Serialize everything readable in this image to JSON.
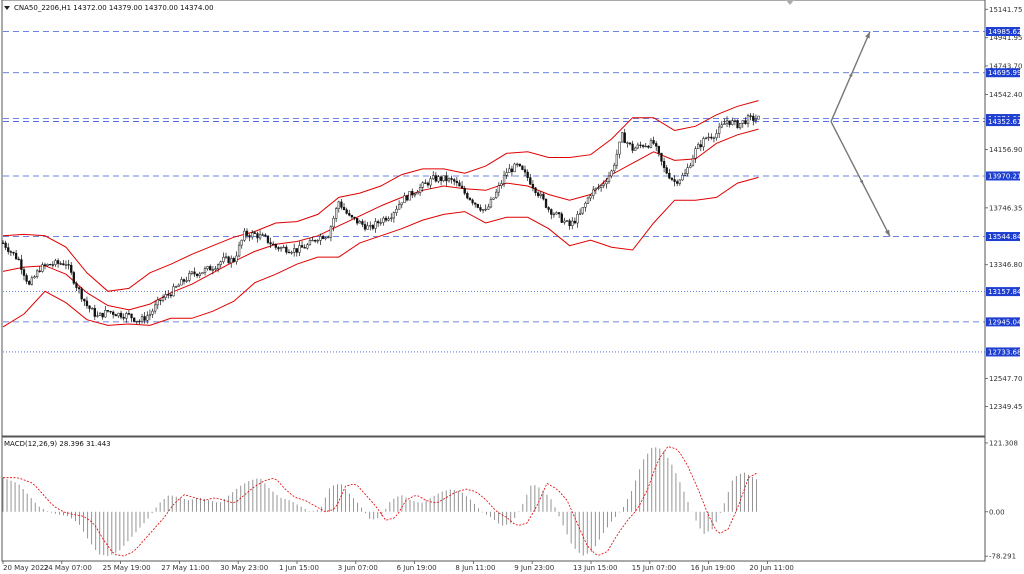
{
  "header": {
    "symbol_line": "CNA50_2206,H1  14372.00  14379.00  14370.00  14374.00",
    "macd_label": "MACD(12,26,9) 28.396 31.443"
  },
  "colors": {
    "candle": "#111111",
    "bollinger": "#e00000",
    "level_line": "#3b5bdb",
    "level_tag_bg": "#1f3fd1",
    "projection": "#777777",
    "macd_hist": "#888888",
    "macd_signal": "#e00000",
    "grid_border": "#555555"
  },
  "chart_data": [
    {
      "type": "candlestick",
      "title": "CNA50_2206,H1",
      "ylim": [
        12150,
        15200
      ],
      "y_ticks": [
        15141.75,
        14941.95,
        14743.7,
        14542.4,
        14156.9,
        13746.35,
        13346.8,
        12547.7,
        12349.45
      ],
      "x_ticks": [
        "20 May 2022",
        "24 May 07:00",
        "25 May 19:00",
        "27 May 11:00",
        "30 May 23:00",
        "1 Jun 15:00",
        "3 Jun 07:00",
        "6 Jun 19:00",
        "8 Jun 11:00",
        "9 Jun 23:00",
        "13 Jun 15:00",
        "15 Jun 07:00",
        "16 Jun 19:00",
        "20 Jun 11:00"
      ],
      "levels": [
        {
          "value": 14985.62,
          "label": "14985.62",
          "style": "dashed"
        },
        {
          "value": 14695.99,
          "label": "14695.99",
          "style": "dashed"
        },
        {
          "value": 14374.0,
          "label": "14374.00",
          "style": "dashed"
        },
        {
          "value": 14352.61,
          "label": "14352.61",
          "style": "dashed"
        },
        {
          "value": 13970.21,
          "label": "13970.21",
          "style": "dashed"
        },
        {
          "value": 13544.84,
          "label": "13544.84",
          "style": "dashed"
        },
        {
          "value": 13157.84,
          "label": "13157.84",
          "style": "dotted"
        },
        {
          "value": 12945.04,
          "label": "12945.04",
          "style": "dashed"
        },
        {
          "value": 12733.68,
          "label": "12733.68",
          "style": "dotted"
        }
      ],
      "close_path": [
        [
          0,
          13500
        ],
        [
          6,
          13380
        ],
        [
          10,
          13200
        ],
        [
          14,
          13320
        ],
        [
          18,
          13350
        ],
        [
          24,
          13360
        ],
        [
          28,
          13200
        ],
        [
          32,
          13060
        ],
        [
          36,
          12980
        ],
        [
          40,
          13020
        ],
        [
          44,
          13000
        ],
        [
          48,
          12990
        ],
        [
          52,
          12950
        ],
        [
          56,
          13000
        ],
        [
          60,
          13100
        ],
        [
          64,
          13150
        ],
        [
          68,
          13220
        ],
        [
          72,
          13280
        ],
        [
          76,
          13300
        ],
        [
          80,
          13330
        ],
        [
          84,
          13380
        ],
        [
          88,
          13380
        ],
        [
          92,
          13560
        ],
        [
          96,
          13560
        ],
        [
          100,
          13530
        ],
        [
          104,
          13470
        ],
        [
          108,
          13460
        ],
        [
          112,
          13450
        ],
        [
          116,
          13480
        ],
        [
          120,
          13540
        ],
        [
          124,
          13560
        ],
        [
          128,
          13790
        ],
        [
          132,
          13680
        ],
        [
          136,
          13640
        ],
        [
          140,
          13600
        ],
        [
          144,
          13660
        ],
        [
          148,
          13700
        ],
        [
          152,
          13800
        ],
        [
          156,
          13850
        ],
        [
          160,
          13900
        ],
        [
          164,
          13950
        ],
        [
          168,
          13950
        ],
        [
          172,
          13930
        ],
        [
          176,
          13850
        ],
        [
          180,
          13780
        ],
        [
          184,
          13720
        ],
        [
          188,
          13850
        ],
        [
          192,
          14000
        ],
        [
          196,
          14040
        ],
        [
          200,
          13960
        ],
        [
          204,
          13850
        ],
        [
          208,
          13740
        ],
        [
          212,
          13680
        ],
        [
          216,
          13620
        ],
        [
          220,
          13700
        ],
        [
          224,
          13850
        ],
        [
          228,
          13900
        ],
        [
          232,
          14000
        ],
        [
          236,
          14250
        ],
        [
          240,
          14160
        ],
        [
          244,
          14190
        ],
        [
          248,
          14200
        ],
        [
          252,
          14020
        ],
        [
          256,
          13930
        ],
        [
          260,
          13980
        ],
        [
          264,
          14150
        ],
        [
          268,
          14240
        ],
        [
          272,
          14270
        ],
        [
          276,
          14360
        ],
        [
          280,
          14330
        ],
        [
          284,
          14370
        ],
        [
          288,
          14374
        ]
      ],
      "bollinger_upper": [
        [
          0,
          13550
        ],
        [
          8,
          13560
        ],
        [
          16,
          13550
        ],
        [
          24,
          13470
        ],
        [
          32,
          13290
        ],
        [
          40,
          13160
        ],
        [
          48,
          13180
        ],
        [
          56,
          13290
        ],
        [
          64,
          13350
        ],
        [
          72,
          13420
        ],
        [
          80,
          13480
        ],
        [
          88,
          13540
        ],
        [
          96,
          13580
        ],
        [
          104,
          13640
        ],
        [
          112,
          13650
        ],
        [
          120,
          13700
        ],
        [
          128,
          13820
        ],
        [
          136,
          13850
        ],
        [
          144,
          13900
        ],
        [
          152,
          13980
        ],
        [
          160,
          14020
        ],
        [
          168,
          14020
        ],
        [
          176,
          13990
        ],
        [
          184,
          14040
        ],
        [
          192,
          14130
        ],
        [
          200,
          14140
        ],
        [
          208,
          14100
        ],
        [
          216,
          14100
        ],
        [
          224,
          14120
        ],
        [
          232,
          14230
        ],
        [
          240,
          14380
        ],
        [
          248,
          14380
        ],
        [
          256,
          14290
        ],
        [
          264,
          14320
        ],
        [
          272,
          14400
        ],
        [
          280,
          14460
        ],
        [
          288,
          14500
        ]
      ],
      "bollinger_middle": [
        [
          0,
          13300
        ],
        [
          8,
          13330
        ],
        [
          16,
          13340
        ],
        [
          24,
          13280
        ],
        [
          32,
          13150
        ],
        [
          40,
          13060
        ],
        [
          48,
          13030
        ],
        [
          56,
          13070
        ],
        [
          64,
          13150
        ],
        [
          72,
          13210
        ],
        [
          80,
          13290
        ],
        [
          88,
          13370
        ],
        [
          96,
          13440
        ],
        [
          104,
          13490
        ],
        [
          112,
          13510
        ],
        [
          120,
          13550
        ],
        [
          128,
          13620
        ],
        [
          136,
          13690
        ],
        [
          144,
          13760
        ],
        [
          152,
          13820
        ],
        [
          160,
          13870
        ],
        [
          168,
          13900
        ],
        [
          176,
          13880
        ],
        [
          184,
          13870
        ],
        [
          192,
          13920
        ],
        [
          200,
          13900
        ],
        [
          208,
          13840
        ],
        [
          216,
          13800
        ],
        [
          224,
          13840
        ],
        [
          232,
          13980
        ],
        [
          240,
          14060
        ],
        [
          248,
          14140
        ],
        [
          256,
          14080
        ],
        [
          264,
          14090
        ],
        [
          272,
          14200
        ],
        [
          280,
          14260
        ],
        [
          288,
          14300
        ]
      ],
      "bollinger_lower": [
        [
          0,
          12910
        ],
        [
          8,
          13000
        ],
        [
          16,
          13160
        ],
        [
          24,
          13080
        ],
        [
          32,
          12960
        ],
        [
          40,
          12920
        ],
        [
          48,
          12930
        ],
        [
          56,
          12920
        ],
        [
          64,
          12970
        ],
        [
          72,
          12970
        ],
        [
          80,
          13020
        ],
        [
          88,
          13090
        ],
        [
          96,
          13220
        ],
        [
          104,
          13280
        ],
        [
          112,
          13350
        ],
        [
          120,
          13400
        ],
        [
          128,
          13400
        ],
        [
          136,
          13500
        ],
        [
          144,
          13550
        ],
        [
          152,
          13600
        ],
        [
          160,
          13660
        ],
        [
          168,
          13700
        ],
        [
          176,
          13720
        ],
        [
          184,
          13640
        ],
        [
          192,
          13680
        ],
        [
          200,
          13680
        ],
        [
          208,
          13600
        ],
        [
          216,
          13480
        ],
        [
          224,
          13520
        ],
        [
          232,
          13470
        ],
        [
          240,
          13450
        ],
        [
          248,
          13640
        ],
        [
          256,
          13800
        ],
        [
          264,
          13800
        ],
        [
          272,
          13820
        ],
        [
          280,
          13920
        ],
        [
          288,
          13960
        ]
      ],
      "projection": {
        "origin": [
          13.6,
          14352.61
        ],
        "up": [
          [
            13.6,
            14352.61
          ],
          [
            14.6,
            14985.62
          ]
        ],
        "down": [
          [
            13.6,
            14352.61
          ],
          [
            14.6,
            13544.84
          ]
        ]
      }
    },
    {
      "type": "bar",
      "title": "MACD(12,26,9) 28.396 31.443",
      "ylim": [
        -85,
        130
      ],
      "y_ticks": [
        121.308,
        0.0,
        -78.291
      ],
      "histogram": [
        [
          0,
          60
        ],
        [
          6,
          50
        ],
        [
          10,
          30
        ],
        [
          14,
          10
        ],
        [
          18,
          0
        ],
        [
          22,
          -5
        ],
        [
          26,
          -8
        ],
        [
          30,
          -20
        ],
        [
          34,
          -50
        ],
        [
          38,
          -75
        ],
        [
          42,
          -78
        ],
        [
          46,
          -70
        ],
        [
          50,
          -50
        ],
        [
          54,
          -30
        ],
        [
          58,
          -10
        ],
        [
          62,
          15
        ],
        [
          66,
          30
        ],
        [
          70,
          25
        ],
        [
          74,
          20
        ],
        [
          78,
          25
        ],
        [
          82,
          20
        ],
        [
          86,
          15
        ],
        [
          90,
          30
        ],
        [
          94,
          45
        ],
        [
          98,
          55
        ],
        [
          102,
          60
        ],
        [
          106,
          40
        ],
        [
          110,
          25
        ],
        [
          114,
          20
        ],
        [
          118,
          10
        ],
        [
          122,
          0
        ],
        [
          126,
          5
        ],
        [
          130,
          45
        ],
        [
          134,
          50
        ],
        [
          138,
          30
        ],
        [
          142,
          10
        ],
        [
          146,
          -15
        ],
        [
          150,
          -10
        ],
        [
          154,
          20
        ],
        [
          158,
          30
        ],
        [
          162,
          20
        ],
        [
          166,
          15
        ],
        [
          170,
          25
        ],
        [
          174,
          35
        ],
        [
          178,
          40
        ],
        [
          182,
          35
        ],
        [
          186,
          20
        ],
        [
          190,
          0
        ],
        [
          194,
          -10
        ],
        [
          198,
          -25
        ],
        [
          202,
          -20
        ],
        [
          206,
          10
        ],
        [
          210,
          50
        ],
        [
          214,
          40
        ],
        [
          218,
          20
        ],
        [
          222,
          -20
        ],
        [
          226,
          -60
        ],
        [
          230,
          -78
        ],
        [
          234,
          -70
        ],
        [
          238,
          -40
        ],
        [
          242,
          -15
        ],
        [
          246,
          5
        ],
        [
          250,
          40
        ],
        [
          254,
          90
        ],
        [
          258,
          115
        ],
        [
          262,
          110
        ],
        [
          266,
          80
        ],
        [
          270,
          40
        ],
        [
          274,
          -5
        ],
        [
          278,
          -40
        ],
        [
          282,
          -30
        ],
        [
          286,
          10
        ],
        [
          290,
          60
        ],
        [
          294,
          70
        ],
        [
          298,
          60
        ],
        [
          302,
          50
        ],
        [
          306,
          45
        ],
        [
          310,
          40
        ],
        [
          314,
          30
        ],
        [
          318,
          28
        ]
      ]
    }
  ]
}
